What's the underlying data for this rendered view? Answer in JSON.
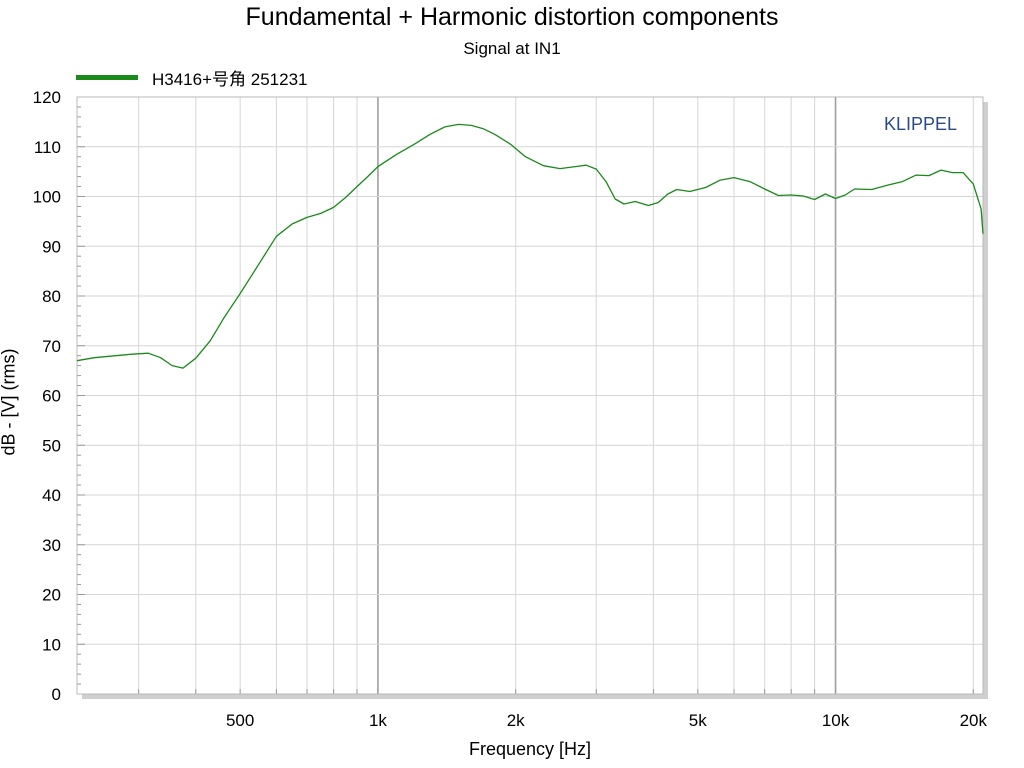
{
  "chart_data": {
    "type": "line",
    "title": "Fundamental + Harmonic distortion components",
    "subtitle": "Signal at IN1",
    "xlabel": "Frequency [Hz]",
    "ylabel": "dB - [V]  (rms)",
    "x_scale": "log",
    "xlim": [
      220,
      21000
    ],
    "ylim": [
      0,
      120
    ],
    "y_ticks": [
      0,
      10,
      20,
      30,
      40,
      50,
      60,
      70,
      80,
      90,
      100,
      110,
      120
    ],
    "x_ticks": [
      {
        "value": 500,
        "label": "500"
      },
      {
        "value": 1000,
        "label": "1k"
      },
      {
        "value": 2000,
        "label": "2k"
      },
      {
        "value": 5000,
        "label": "5k"
      },
      {
        "value": 10000,
        "label": "10k"
      },
      {
        "value": 20000,
        "label": "20k"
      }
    ],
    "grid": true,
    "legend_position": "top-left",
    "brand": "KLIPPEL",
    "series": [
      {
        "name": "H3416+号角  251231",
        "color": "#1a8a1a",
        "points": [
          [
            220,
            67.0
          ],
          [
            240,
            67.6
          ],
          [
            260,
            67.9
          ],
          [
            290,
            68.3
          ],
          [
            315,
            68.5
          ],
          [
            335,
            67.6
          ],
          [
            355,
            66.0
          ],
          [
            375,
            65.5
          ],
          [
            400,
            67.5
          ],
          [
            430,
            71.0
          ],
          [
            460,
            75.5
          ],
          [
            500,
            80.5
          ],
          [
            550,
            86.5
          ],
          [
            600,
            92.0
          ],
          [
            650,
            94.5
          ],
          [
            700,
            95.8
          ],
          [
            750,
            96.6
          ],
          [
            800,
            97.8
          ],
          [
            850,
            99.8
          ],
          [
            900,
            102.0
          ],
          [
            950,
            104.0
          ],
          [
            1000,
            106.0
          ],
          [
            1100,
            108.5
          ],
          [
            1200,
            110.5
          ],
          [
            1300,
            112.5
          ],
          [
            1400,
            114.0
          ],
          [
            1500,
            114.5
          ],
          [
            1600,
            114.3
          ],
          [
            1700,
            113.6
          ],
          [
            1800,
            112.5
          ],
          [
            1950,
            110.5
          ],
          [
            2100,
            108.0
          ],
          [
            2300,
            106.2
          ],
          [
            2500,
            105.6
          ],
          [
            2700,
            106.0
          ],
          [
            2850,
            106.3
          ],
          [
            3000,
            105.5
          ],
          [
            3150,
            103.0
          ],
          [
            3300,
            99.5
          ],
          [
            3450,
            98.5
          ],
          [
            3650,
            99.0
          ],
          [
            3900,
            98.2
          ],
          [
            4100,
            98.8
          ],
          [
            4300,
            100.5
          ],
          [
            4500,
            101.4
          ],
          [
            4800,
            101.0
          ],
          [
            5200,
            101.8
          ],
          [
            5600,
            103.3
          ],
          [
            6000,
            103.8
          ],
          [
            6500,
            103.0
          ],
          [
            7000,
            101.5
          ],
          [
            7500,
            100.2
          ],
          [
            8000,
            100.3
          ],
          [
            8500,
            100.1
          ],
          [
            9000,
            99.4
          ],
          [
            9500,
            100.5
          ],
          [
            10000,
            99.6
          ],
          [
            10500,
            100.3
          ],
          [
            11000,
            101.5
          ],
          [
            12000,
            101.4
          ],
          [
            13000,
            102.3
          ],
          [
            14000,
            103.0
          ],
          [
            15000,
            104.3
          ],
          [
            16000,
            104.2
          ],
          [
            17000,
            105.3
          ],
          [
            18000,
            104.8
          ],
          [
            19000,
            104.8
          ],
          [
            20000,
            102.5
          ],
          [
            20800,
            97.5
          ],
          [
            21000,
            92.5
          ]
        ]
      }
    ]
  }
}
